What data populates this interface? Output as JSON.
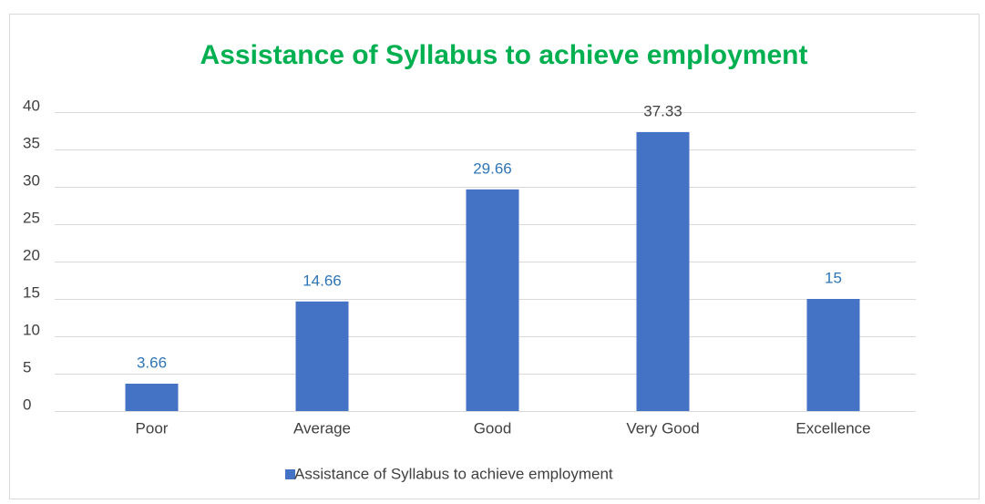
{
  "chart_data": {
    "type": "bar",
    "title": "Assistance of Syllabus to achieve employment",
    "title_color": "#00b050",
    "categories": [
      "Poor",
      "Average",
      "Good",
      "Very Good",
      "Excellence"
    ],
    "series": [
      {
        "name": "Assistance of Syllabus to achieve employment",
        "color": "#4472c4",
        "values": [
          3.66,
          14.66,
          29.66,
          37.33,
          15
        ]
      }
    ],
    "label_colors": [
      "#2e75b6",
      "#2e75b6",
      "#2e75b6",
      "#404040",
      "#2e75b6"
    ],
    "ylim": [
      0,
      40
    ],
    "yticks": [
      0,
      5,
      10,
      15,
      20,
      25,
      30,
      35,
      40
    ],
    "grid": true,
    "legend": "bottom"
  }
}
